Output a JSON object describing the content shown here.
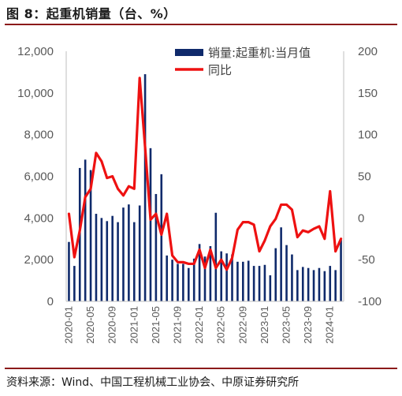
{
  "header": {
    "title": "图 8：起重机销量（台、%）",
    "source": "资料来源：Wind、中国工程机械工业协会、中原证券研究所"
  },
  "colors": {
    "bars": "#0f2a6b",
    "line": "#ee1111",
    "axis": "#bfbfbf",
    "ticks": "#595959"
  },
  "chart_data": {
    "type": "bar+line",
    "legend_position": "top-right",
    "categories": [
      "2020-01",
      "2020-02",
      "2020-03",
      "2020-04",
      "2020-05",
      "2020-06",
      "2020-07",
      "2020-08",
      "2020-09",
      "2020-10",
      "2020-11",
      "2020-12",
      "2021-01",
      "2021-02",
      "2021-03",
      "2021-04",
      "2021-05",
      "2021-06",
      "2021-07",
      "2021-08",
      "2021-09",
      "2021-10",
      "2021-11",
      "2021-12",
      "2022-01",
      "2022-02",
      "2022-03",
      "2022-04",
      "2022-05",
      "2022-06",
      "2022-07",
      "2022-08",
      "2022-09",
      "2022-10",
      "2022-11",
      "2022-12",
      "2023-01",
      "2023-02",
      "2023-03",
      "2023-04",
      "2023-05",
      "2023-06",
      "2023-07",
      "2023-08",
      "2023-09",
      "2023-10",
      "2023-11",
      "2023-12",
      "2024-01",
      "2024-02",
      "2024-03"
    ],
    "xtick_labels": [
      "2020-01",
      "2020-05",
      "2020-09",
      "2021-01",
      "2021-05",
      "2021-09",
      "2022-01",
      "2022-05",
      "2022-09",
      "2023-01",
      "2023-05",
      "2023-09",
      "2024-01"
    ],
    "series": [
      {
        "name": "销量:起重机:当月值",
        "type": "bar",
        "axis": "left",
        "values": [
          2850,
          1700,
          6400,
          6800,
          6300,
          4200,
          4000,
          3850,
          4100,
          3800,
          4500,
          4650,
          3800,
          4600,
          10900,
          7350,
          5150,
          6100,
          2200,
          2000,
          1800,
          1800,
          1600,
          2050,
          2750,
          2150,
          2650,
          4250,
          2400,
          2300,
          2250,
          1900,
          1900,
          1950,
          1700,
          1700,
          1750,
          1250,
          2550,
          3550,
          2700,
          2250,
          1500,
          1650,
          1600,
          1500,
          1600,
          1450,
          1700,
          1500,
          2950
        ]
      },
      {
        "name": "同比",
        "type": "line",
        "axis": "right",
        "values": [
          5,
          -47,
          -15,
          25,
          35,
          78,
          68,
          48,
          50,
          35,
          27,
          38,
          35,
          168,
          85,
          -2,
          5,
          -20,
          5,
          -45,
          -53,
          -53,
          -55,
          -55,
          -38,
          -60,
          -38,
          -60,
          -50,
          -62,
          -48,
          -14,
          -5,
          -5,
          -8,
          -40,
          -27,
          -10,
          -1,
          16,
          16,
          10,
          -23,
          -15,
          -17,
          -13,
          -10,
          -25,
          32,
          -40,
          -25
        ]
      }
    ],
    "y_left": {
      "min": 0,
      "max": 12000,
      "ticks": [
        0,
        2000,
        4000,
        6000,
        8000,
        10000,
        12000
      ],
      "tick_labels": [
        "0",
        "2,000",
        "4,000",
        "6,000",
        "8,000",
        "10,000",
        "12,000"
      ]
    },
    "y_right": {
      "min": -100,
      "max": 200,
      "ticks": [
        -100,
        -50,
        0,
        50,
        100,
        150,
        200
      ],
      "tick_labels": [
        "-100",
        "-50",
        "0",
        "50",
        "100",
        "150",
        "200"
      ]
    },
    "grid": false
  }
}
